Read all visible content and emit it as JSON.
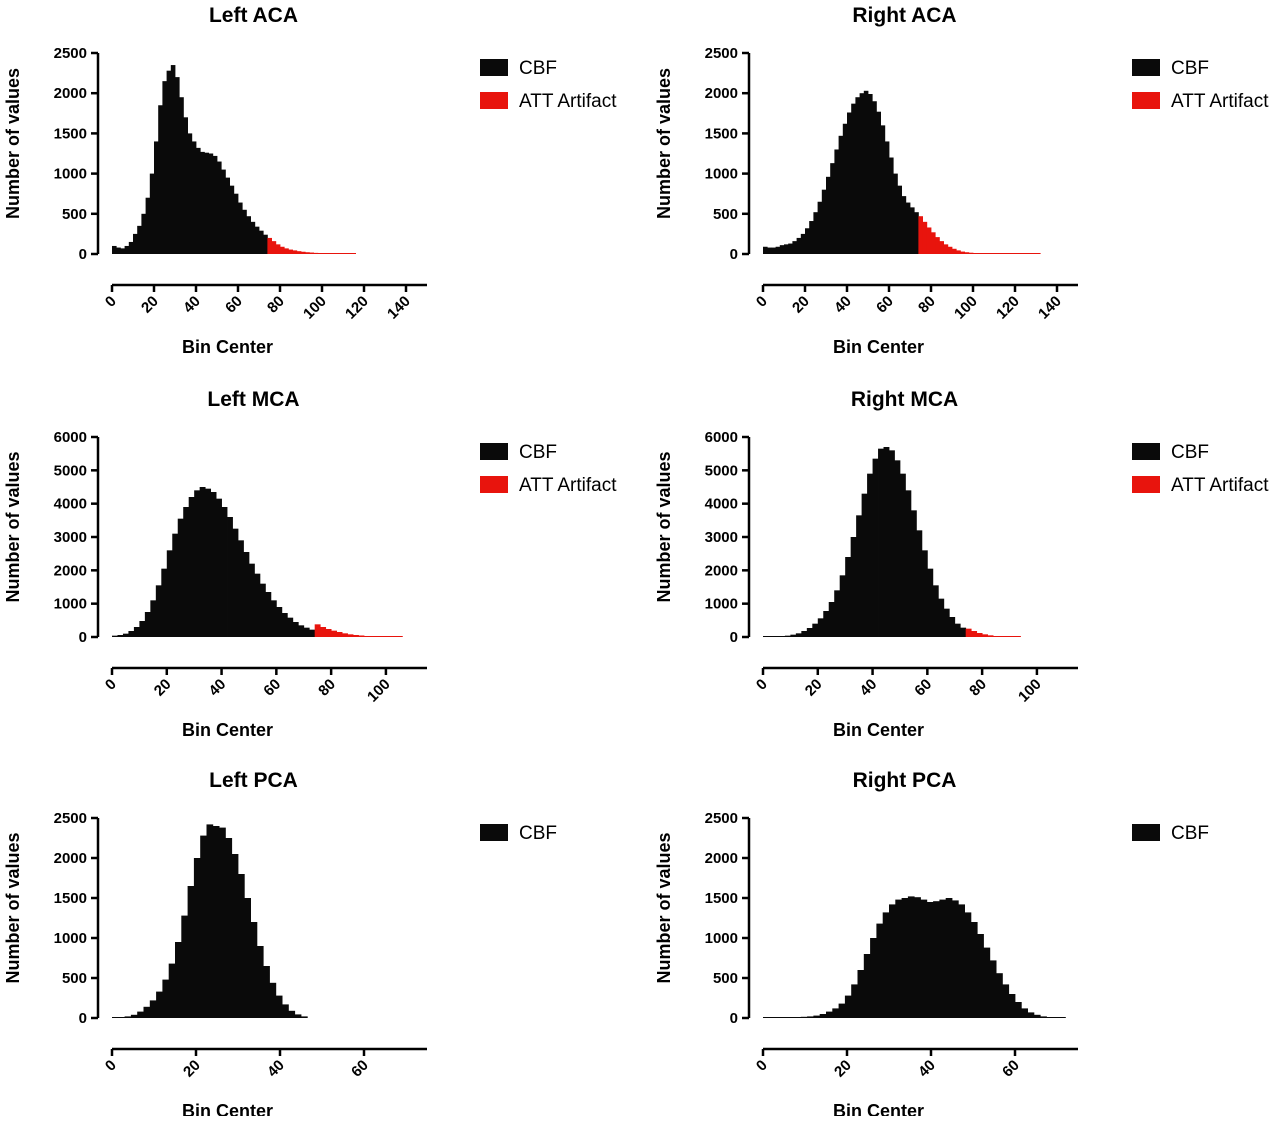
{
  "colors": {
    "CBF": "#0a0a0a",
    "ATT Artifact": "#e8140d"
  },
  "chart_data": [
    {
      "type": "bar",
      "title": "Left ACA",
      "xlabel": "Bin Center",
      "ylabel": "Number of values",
      "xlim": [
        0,
        150
      ],
      "ylim": [
        0,
        2500
      ],
      "xticks": [
        0,
        20,
        40,
        60,
        80,
        100,
        120,
        140
      ],
      "yticks": [
        0,
        500,
        1000,
        1500,
        2000,
        2500
      ],
      "legend": [
        "CBF",
        "ATT Artifact"
      ],
      "legend_position": "right",
      "threshold": 74,
      "series": [
        {
          "name": "CBF",
          "x": [
            0,
            2,
            4,
            6,
            8,
            10,
            12,
            14,
            16,
            18,
            20,
            22,
            24,
            26,
            28,
            30,
            32,
            34,
            36,
            38,
            40,
            42,
            44,
            46,
            48,
            50,
            52,
            54,
            56,
            58,
            60,
            62,
            64,
            66,
            68,
            70,
            72,
            74,
            76,
            78,
            80,
            82,
            84,
            86,
            88,
            90,
            92,
            94,
            96,
            98,
            100,
            102,
            104,
            106,
            108,
            110,
            112,
            114
          ],
          "values": [
            100,
            80,
            70,
            100,
            150,
            250,
            350,
            500,
            700,
            1000,
            1400,
            1850,
            2150,
            2280,
            2350,
            2200,
            1950,
            1700,
            1500,
            1400,
            1320,
            1270,
            1260,
            1250,
            1220,
            1150,
            1050,
            950,
            850,
            750,
            640,
            550,
            470,
            400,
            340,
            290,
            240,
            200,
            160,
            120,
            90,
            70,
            55,
            45,
            35,
            28,
            22,
            18,
            14,
            10,
            8,
            6,
            5,
            4,
            3,
            3,
            2,
            2
          ]
        }
      ]
    },
    {
      "type": "bar",
      "title": "Right ACA",
      "xlabel": "Bin Center",
      "ylabel": "Number of values",
      "xlim": [
        0,
        150
      ],
      "ylim": [
        0,
        2500
      ],
      "xticks": [
        0,
        20,
        40,
        60,
        80,
        100,
        120,
        140
      ],
      "yticks": [
        0,
        500,
        1000,
        1500,
        2000,
        2500
      ],
      "legend": [
        "CBF",
        "ATT Artifact"
      ],
      "legend_position": "right",
      "threshold": 74,
      "series": [
        {
          "name": "CBF",
          "x": [
            0,
            2,
            4,
            6,
            8,
            10,
            12,
            14,
            16,
            18,
            20,
            22,
            24,
            26,
            28,
            30,
            32,
            34,
            36,
            38,
            40,
            42,
            44,
            46,
            48,
            50,
            52,
            54,
            56,
            58,
            60,
            62,
            64,
            66,
            68,
            70,
            72,
            74,
            76,
            78,
            80,
            82,
            84,
            86,
            88,
            90,
            92,
            94,
            96,
            98,
            100,
            102,
            104,
            106,
            108,
            110,
            112,
            114,
            116,
            118,
            120,
            122,
            124,
            126,
            128,
            130
          ],
          "values": [
            90,
            80,
            80,
            90,
            110,
            120,
            130,
            160,
            200,
            250,
            320,
            410,
            520,
            650,
            800,
            960,
            1130,
            1300,
            1470,
            1620,
            1760,
            1870,
            1950,
            2000,
            2030,
            1990,
            1900,
            1770,
            1600,
            1400,
            1200,
            1000,
            850,
            720,
            640,
            580,
            520,
            470,
            400,
            330,
            270,
            210,
            160,
            120,
            90,
            65,
            45,
            30,
            22,
            16,
            11,
            8,
            6,
            5,
            4,
            3,
            3,
            2,
            2,
            2,
            1,
            1,
            1,
            1,
            1,
            1
          ]
        }
      ]
    },
    {
      "type": "bar",
      "title": "Left MCA",
      "xlabel": "Bin Center",
      "ylabel": "Number of values",
      "xlim": [
        0,
        115
      ],
      "ylim": [
        0,
        6000
      ],
      "xticks": [
        0,
        20,
        40,
        60,
        80,
        100
      ],
      "yticks": [
        0,
        1000,
        2000,
        3000,
        4000,
        5000,
        6000
      ],
      "legend": [
        "CBF",
        "ATT Artifact"
      ],
      "legend_position": "right",
      "threshold": 74,
      "series": [
        {
          "name": "CBF",
          "x": [
            0,
            2,
            4,
            6,
            8,
            10,
            12,
            14,
            16,
            18,
            20,
            22,
            24,
            26,
            28,
            30,
            32,
            34,
            36,
            38,
            40,
            42,
            44,
            46,
            48,
            50,
            52,
            54,
            56,
            58,
            60,
            62,
            64,
            66,
            68,
            70,
            72,
            74,
            76,
            78,
            80,
            82,
            84,
            86,
            88,
            90,
            92,
            94,
            96,
            98,
            100,
            102,
            104
          ],
          "values": [
            40,
            60,
            100,
            180,
            300,
            480,
            750,
            1100,
            1550,
            2050,
            2600,
            3100,
            3550,
            3900,
            4200,
            4400,
            4500,
            4450,
            4350,
            4150,
            3900,
            3600,
            3250,
            2900,
            2550,
            2200,
            1900,
            1600,
            1350,
            1100,
            900,
            720,
            580,
            450,
            350,
            280,
            220,
            380,
            300,
            240,
            190,
            150,
            110,
            80,
            60,
            45,
            30,
            22,
            15,
            10,
            8,
            5,
            4
          ]
        }
      ]
    },
    {
      "type": "bar",
      "title": "Right MCA",
      "xlabel": "Bin Center",
      "ylabel": "Number of values",
      "xlim": [
        0,
        115
      ],
      "ylim": [
        0,
        6000
      ],
      "xticks": [
        0,
        20,
        40,
        60,
        80,
        100
      ],
      "yticks": [
        0,
        1000,
        2000,
        3000,
        4000,
        5000,
        6000
      ],
      "legend": [
        "CBF",
        "ATT Artifact"
      ],
      "legend_position": "right",
      "threshold": 74,
      "series": [
        {
          "name": "CBF",
          "x": [
            0,
            2,
            4,
            6,
            8,
            10,
            12,
            14,
            16,
            18,
            20,
            22,
            24,
            26,
            28,
            30,
            32,
            34,
            36,
            38,
            40,
            42,
            44,
            46,
            48,
            50,
            52,
            54,
            56,
            58,
            60,
            62,
            64,
            66,
            68,
            70,
            72,
            74,
            76,
            78,
            80,
            82,
            84,
            86,
            88,
            90,
            92
          ],
          "values": [
            5,
            8,
            12,
            20,
            40,
            70,
            110,
            180,
            270,
            400,
            560,
            780,
            1050,
            1400,
            1850,
            2400,
            3000,
            3650,
            4300,
            4900,
            5350,
            5650,
            5700,
            5600,
            5300,
            4900,
            4400,
            3800,
            3200,
            2600,
            2050,
            1550,
            1150,
            850,
            600,
            400,
            280,
            250,
            180,
            120,
            80,
            50,
            30,
            18,
            10,
            6,
            4
          ]
        }
      ]
    },
    {
      "type": "bar",
      "title": "Left PCA",
      "xlabel": "Bin Center",
      "ylabel": "Number of values",
      "xlim": [
        0,
        75
      ],
      "ylim": [
        0,
        2500
      ],
      "xticks": [
        0,
        20,
        40,
        60
      ],
      "yticks": [
        0,
        500,
        1000,
        1500,
        2000,
        2500
      ],
      "legend": [
        "CBF"
      ],
      "legend_position": "right",
      "series": [
        {
          "name": "CBF",
          "x": [
            0,
            1.5,
            3,
            4.5,
            6,
            7.5,
            9,
            10.5,
            12,
            13.5,
            15,
            16.5,
            18,
            19.5,
            21,
            22.5,
            24,
            25.5,
            27,
            28.5,
            30,
            31.5,
            33,
            34.5,
            36,
            37.5,
            39,
            40.5,
            42,
            43.5,
            45
          ],
          "values": [
            5,
            10,
            20,
            40,
            80,
            140,
            220,
            330,
            480,
            680,
            950,
            1280,
            1650,
            2000,
            2280,
            2420,
            2400,
            2380,
            2250,
            2050,
            1800,
            1500,
            1200,
            900,
            650,
            440,
            280,
            170,
            90,
            45,
            20
          ]
        }
      ]
    },
    {
      "type": "bar",
      "title": "Right PCA",
      "xlabel": "Bin Center",
      "ylabel": "Number of values",
      "xlim": [
        0,
        75
      ],
      "ylim": [
        0,
        2500
      ],
      "xticks": [
        0,
        20,
        40,
        60
      ],
      "yticks": [
        0,
        500,
        1000,
        1500,
        2000,
        2500
      ],
      "legend": [
        "CBF"
      ],
      "legend_position": "right",
      "series": [
        {
          "name": "CBF",
          "x": [
            0,
            1.5,
            3,
            4.5,
            6,
            7.5,
            9,
            10.5,
            12,
            13.5,
            15,
            16.5,
            18,
            19.5,
            21,
            22.5,
            24,
            25.5,
            27,
            28.5,
            30,
            31.5,
            33,
            34.5,
            36,
            37.5,
            39,
            40.5,
            42,
            43.5,
            45,
            46.5,
            48,
            49.5,
            51,
            52.5,
            54,
            55.5,
            57,
            58.5,
            60,
            61.5,
            63,
            64.5,
            66,
            67.5,
            69,
            70.5
          ],
          "values": [
            5,
            5,
            5,
            6,
            8,
            10,
            15,
            20,
            30,
            50,
            80,
            120,
            180,
            280,
            420,
            600,
            800,
            1000,
            1180,
            1320,
            1420,
            1480,
            1500,
            1520,
            1510,
            1480,
            1450,
            1460,
            1480,
            1500,
            1470,
            1420,
            1320,
            1200,
            1050,
            880,
            720,
            560,
            420,
            300,
            200,
            120,
            70,
            40,
            20,
            10,
            5,
            3
          ]
        }
      ]
    }
  ]
}
